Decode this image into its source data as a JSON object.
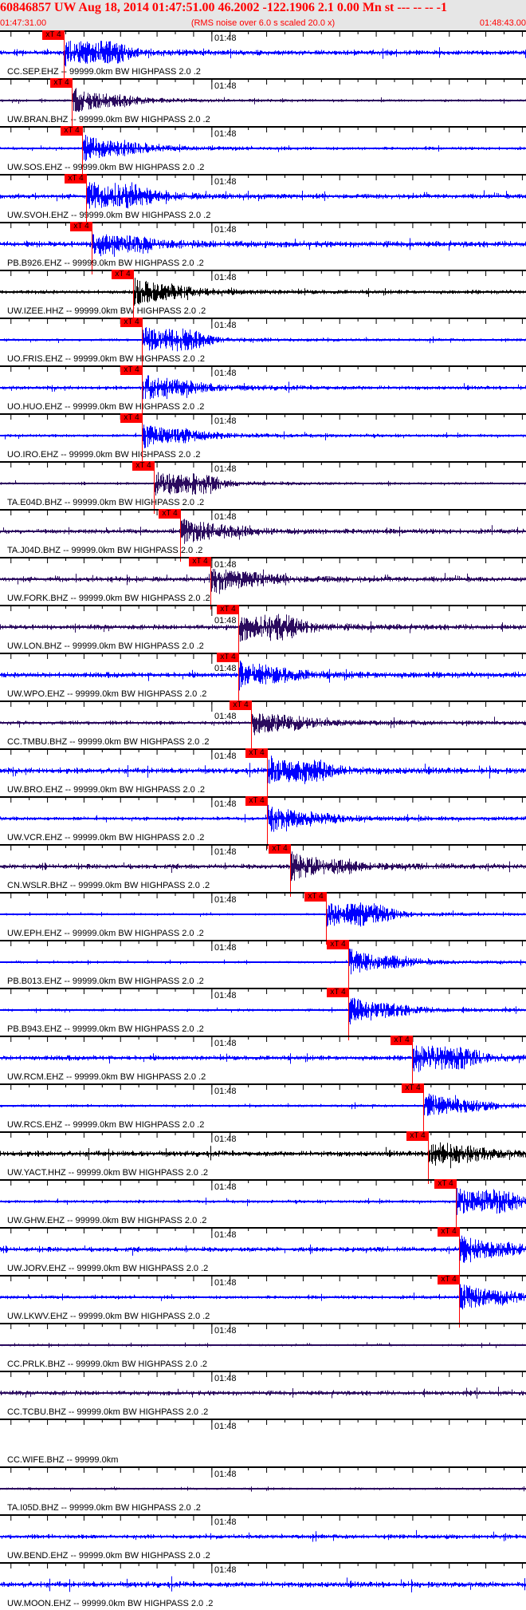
{
  "header": {
    "title": "60846857 UW Aug 18, 2014 01:47:51.00    46.2002 -122.1906  2.1 0.00 Mn st --- -- --   -1",
    "start_time": "01:47:31.00",
    "end_time": "01:48:43.00",
    "rms_note": "(RMS noise over 6.0 s scaled 20.0 x)"
  },
  "time_axis": {
    "start_seconds": 0,
    "end_seconds": 72,
    "minute_label": "01:48",
    "minute_offset_seconds": 29
  },
  "pick_label": "xT 4",
  "colors": {
    "blue": "#0000ff",
    "navy": "#2a0a5e",
    "black": "#000000",
    "pick": "#ff0000",
    "header_bg": "#e6e6e6"
  },
  "traces": [
    {
      "label": "CC.SEP.EHZ -- 99999.0km BW  HIGHPASS  2.0 .2",
      "color": "blue",
      "pick_s": 8.7
    },
    {
      "label": "UW.BRAN.BHZ -- 99999.0km BW  HIGHPASS  2.0 .2",
      "color": "navy",
      "pick_s": 9.8
    },
    {
      "label": "UW.SOS.EHZ -- 99999.0km BW  HIGHPASS  2.0 .2",
      "color": "blue",
      "pick_s": 11.2
    },
    {
      "label": "UW.SVOH.EHZ -- 99999.0km BW  HIGHPASS  2.0 .2",
      "color": "blue",
      "pick_s": 11.8
    },
    {
      "label": "PB.B926.EHZ -- 99999.0km BW  HIGHPASS  2.0 .2",
      "color": "blue",
      "pick_s": 12.6
    },
    {
      "label": "UW.IZEE.HHZ -- 99999.0km BW  HIGHPASS  2.0 .2",
      "color": "black",
      "pick_s": 18.2
    },
    {
      "label": "UO.FRIS.EHZ -- 99999.0km BW  HIGHPASS  2.0 .2",
      "color": "blue",
      "pick_s": 19.4
    },
    {
      "label": "UO.HUO.EHZ -- 99999.0km BW  HIGHPASS  2.0 .2",
      "color": "blue",
      "pick_s": 19.4
    },
    {
      "label": "UO.IRO.EHZ -- 99999.0km BW  HIGHPASS  2.0 .2",
      "color": "blue",
      "pick_s": 19.4
    },
    {
      "label": "TA.E04D.BHZ -- 99999.0km BW  HIGHPASS  2.0 .2",
      "color": "navy",
      "pick_s": 21.0
    },
    {
      "label": "TA.J04D.BHZ -- 99999.0km BW  HIGHPASS  2.0 .2",
      "color": "navy",
      "pick_s": 24.6
    },
    {
      "label": "UW.FORK.BHZ -- 99999.0km BW  HIGHPASS  2.0 .2",
      "color": "navy",
      "pick_s": 28.8
    },
    {
      "label": "UW.LON.BHZ -- 99999.0km BW  HIGHPASS  2.0 .2",
      "color": "navy",
      "pick_s": 32.6
    },
    {
      "label": "UW.WPO.EHZ -- 99999.0km BW  HIGHPASS  2.0 .2",
      "color": "blue",
      "pick_s": 32.6
    },
    {
      "label": "CC.TMBU.BHZ -- 99999.0km BW  HIGHPASS  2.0 .2",
      "color": "navy",
      "pick_s": 34.4
    },
    {
      "label": "UW.BRO.EHZ -- 99999.0km BW  HIGHPASS  2.0 .2",
      "color": "blue",
      "pick_s": 36.5
    },
    {
      "label": "UW.VCR.EHZ -- 99999.0km BW  HIGHPASS  2.0 .2",
      "color": "blue",
      "pick_s": 36.5
    },
    {
      "label": "CN.WSLR.BHZ -- 99999.0km BW  HIGHPASS  2.0 .2",
      "color": "navy",
      "pick_s": 39.7
    },
    {
      "label": "UW.EPH.EHZ -- 99999.0km BW  HIGHPASS  2.0 .2",
      "color": "blue",
      "pick_s": 44.6
    },
    {
      "label": "PB.B013.EHZ -- 99999.0km BW  HIGHPASS  2.0 .2",
      "color": "blue",
      "pick_s": 47.7
    },
    {
      "label": "PB.B943.EHZ -- 99999.0km BW  HIGHPASS  2.0 .2",
      "color": "blue",
      "pick_s": 47.7
    },
    {
      "label": "UW.RCM.EHZ -- 99999.0km BW  HIGHPASS  2.0 .2",
      "color": "blue",
      "pick_s": 56.4
    },
    {
      "label": "UW.RCS.EHZ -- 99999.0km BW  HIGHPASS  2.0 .2",
      "color": "blue",
      "pick_s": 57.9
    },
    {
      "label": "UW.YACT.HHZ -- 99999.0km BW  HIGHPASS  2.0 .2",
      "color": "black",
      "pick_s": 58.6
    },
    {
      "label": "UW.GHW.EHZ -- 99999.0km BW  HIGHPASS  2.0 .2",
      "color": "blue",
      "pick_s": 62.4
    },
    {
      "label": "UW.JORV.EHZ -- 99999.0km BW  HIGHPASS  2.0 .2",
      "color": "blue",
      "pick_s": 62.8
    },
    {
      "label": "UW.LKWV.EHZ -- 99999.0km BW  HIGHPASS  2.0 .2",
      "color": "blue",
      "pick_s": 62.8
    },
    {
      "label": "CC.PRLK.BHZ -- 99999.0km BW  HIGHPASS  2.0 .2",
      "color": "navy",
      "pick_s": null
    },
    {
      "label": "CC.TCBU.BHZ -- 99999.0km BW  HIGHPASS  2.0 .2",
      "color": "navy",
      "pick_s": null
    },
    {
      "label": "CC.WIFE.BHZ -- 99999.0km",
      "color": null,
      "pick_s": null
    },
    {
      "label": "TA.I05D.BHZ -- 99999.0km BW  HIGHPASS  2.0 .2",
      "color": "navy",
      "pick_s": null
    },
    {
      "label": "UW.BEND.EHZ -- 99999.0km BW  HIGHPASS  2.0 .2",
      "color": "blue",
      "pick_s": null
    },
    {
      "label": "UW.MOON.EHZ -- 99999.0km BW  HIGHPASS  2.0 .2",
      "color": "blue",
      "pick_s": null
    }
  ]
}
